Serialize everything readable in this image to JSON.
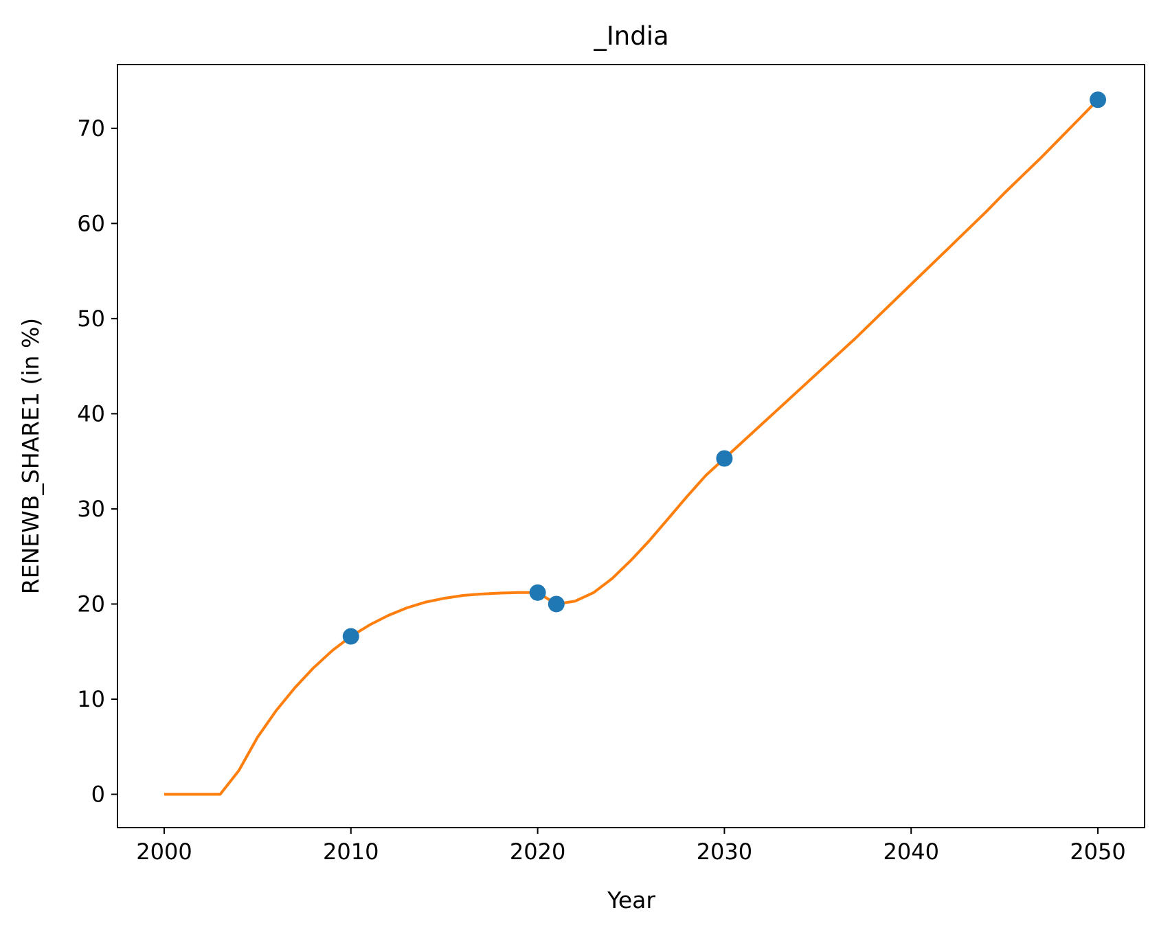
{
  "chart_data": {
    "type": "line",
    "title": "_India",
    "xlabel": "Year",
    "ylabel": "RENEWB_SHARE1 (in %)",
    "xlim": [
      1997.5,
      2052.5
    ],
    "ylim": [
      -3.5,
      76.7
    ],
    "xticks": [
      2000,
      2010,
      2020,
      2030,
      2040,
      2050
    ],
    "yticks": [
      0,
      10,
      20,
      30,
      40,
      50,
      60,
      70
    ],
    "grid": false,
    "series": [
      {
        "kind": "scatter",
        "color": "#1f77b4",
        "x": [
          2010,
          2020,
          2021,
          2030,
          2050
        ],
        "y": [
          16.6,
          21.2,
          20.0,
          35.3,
          73.0
        ]
      },
      {
        "kind": "line",
        "color": "#ff7f0e",
        "x": [
          2000,
          2001,
          2002,
          2003,
          2004,
          2005,
          2006,
          2007,
          2008,
          2009,
          2010,
          2011,
          2012,
          2013,
          2014,
          2015,
          2016,
          2017,
          2018,
          2019,
          2020,
          2021,
          2022,
          2023,
          2024,
          2025,
          2026,
          2027,
          2028,
          2029,
          2030,
          2031,
          2032,
          2033,
          2034,
          2035,
          2036,
          2037,
          2038,
          2039,
          2040,
          2041,
          2042,
          2043,
          2044,
          2045,
          2046,
          2047,
          2048,
          2049,
          2050
        ],
        "y": [
          0,
          0,
          0,
          0,
          2.5,
          6.0,
          8.8,
          11.2,
          13.3,
          15.1,
          16.6,
          17.8,
          18.8,
          19.6,
          20.2,
          20.6,
          20.9,
          21.05,
          21.15,
          21.2,
          21.2,
          20.0,
          20.3,
          21.2,
          22.7,
          24.6,
          26.7,
          29.0,
          31.3,
          33.5,
          35.3,
          37.1,
          38.9,
          40.7,
          42.5,
          44.3,
          46.1,
          47.9,
          49.8,
          51.7,
          53.6,
          55.5,
          57.4,
          59.3,
          61.2,
          63.2,
          65.1,
          67.0,
          69.0,
          71.0,
          73.0
        ]
      }
    ]
  }
}
